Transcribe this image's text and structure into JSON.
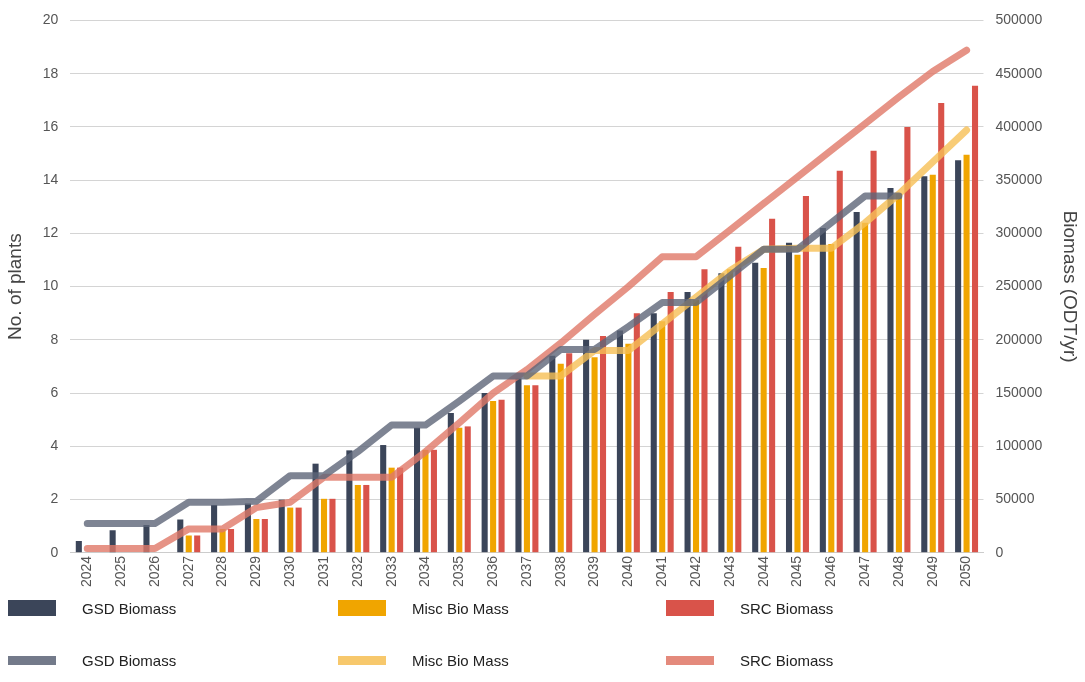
{
  "chart_data": {
    "type": "bar",
    "ylabel": "No. of plants",
    "y2label": "Biomass (ODT/yr)",
    "categories": [
      "2024",
      "2025",
      "2026",
      "2027",
      "2028",
      "2029",
      "2030",
      "2031",
      "2032",
      "2033",
      "2034",
      "2035",
      "2036",
      "2037",
      "2038",
      "2039",
      "2040",
      "2041",
      "2042",
      "2043",
      "2044",
      "2045",
      "2046",
      "2047",
      "2048",
      "2049",
      "2050"
    ],
    "series": [
      {
        "name": "GSD Biomass",
        "color": "#3b4559",
        "values": [
          0.45,
          0.85,
          1.05,
          1.25,
          1.8,
          1.85,
          2.0,
          3.35,
          3.85,
          4.05,
          4.7,
          5.25,
          6.0,
          6.55,
          7.4,
          8.0,
          8.35,
          9.0,
          9.8,
          10.5,
          10.9,
          11.65,
          12.2,
          12.8,
          13.7,
          14.15,
          14.75
        ]
      },
      {
        "name": "Misc Bio Mass",
        "color": "#f0a500",
        "values": [
          0,
          0,
          0,
          0.65,
          0.9,
          1.27,
          1.7,
          2.03,
          2.55,
          3.2,
          3.87,
          4.7,
          5.7,
          6.3,
          7.1,
          7.35,
          7.85,
          8.7,
          9.5,
          10.65,
          10.7,
          11.2,
          11.6,
          12.4,
          13.5,
          14.2,
          14.95
        ]
      },
      {
        "name": "SRC Biomass",
        "color": "#d9534a",
        "values": [
          0,
          0,
          0,
          0.65,
          0.9,
          1.27,
          1.7,
          2.03,
          2.55,
          3.2,
          3.87,
          4.75,
          5.75,
          6.3,
          7.5,
          8.15,
          9.0,
          9.8,
          10.65,
          11.5,
          12.55,
          13.4,
          14.35,
          15.1,
          16.0,
          16.9,
          17.55
        ]
      },
      {
        "name": "GSD Biomass",
        "type": "line",
        "axis": "y2",
        "color": "#5e6578",
        "values": [
          27500,
          27500,
          27500,
          47500,
          47500,
          48500,
          72500,
          72500,
          95000,
          120000,
          120000,
          142500,
          166000,
          166000,
          191000,
          191000,
          212500,
          235000,
          235000,
          260000,
          285000,
          285000,
          310000,
          335000,
          335000,
          null,
          null
        ]
      },
      {
        "name": "Misc Bio Mass",
        "type": "line",
        "axis": "y2",
        "color": "#f6bf55",
        "values": [
          null,
          null,
          null,
          null,
          null,
          null,
          null,
          null,
          null,
          null,
          null,
          null,
          null,
          166000,
          166000,
          190000,
          190000,
          215000,
          240000,
          265000,
          285000,
          286000,
          286000,
          310000,
          337000,
          367000,
          397000
        ]
      },
      {
        "name": "SRC Biomass",
        "type": "line",
        "axis": "y2",
        "color": "#e07868",
        "values": [
          4000,
          4000,
          4000,
          22500,
          22500,
          42500,
          47500,
          71000,
          71000,
          71000,
          95000,
          122000,
          150000,
          172000,
          197000,
          224000,
          250000,
          278000,
          278000,
          303000,
          328000,
          353000,
          378000,
          403000,
          428000,
          452000,
          472000
        ]
      }
    ],
    "ylim": [
      0,
      20
    ],
    "yticks": [
      0,
      2,
      4,
      6,
      8,
      10,
      12,
      14,
      16,
      18,
      20
    ],
    "y2lim": [
      0,
      500000
    ],
    "y2ticks": [
      0,
      50000,
      100000,
      150000,
      200000,
      250000,
      300000,
      350000,
      400000,
      450000,
      500000
    ],
    "grid": "y",
    "legend": "bottom",
    "marker": "none",
    "line_style": "solid"
  }
}
